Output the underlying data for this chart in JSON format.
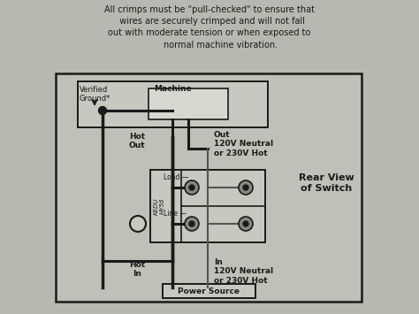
{
  "bg_color": "#b0b0a8",
  "paper_color": "#b8b8b0",
  "header_text": "All crimps must be \"pull-checked\" to ensure that\n  wires are securely crimped and will not fall\nout with moderate tension or when exposed to\n        normal machine vibration.",
  "machine_label": "Machine",
  "verified_ground_label": "Verified\nGround*",
  "hot_out_label": "Hot\nOut",
  "out_label": "Out\n120V Neutral\nor 230V Hot",
  "load_label": "Load —",
  "line_label": "Line —",
  "hot_in_label": "Hot\nIn",
  "in_label": "In\n120V Neutral\nor 230V Hot",
  "power_source_label": "Power Source",
  "rear_view_label": "Rear View\nof Switch",
  "switch_vertical_label": "KEDU\nHY56"
}
